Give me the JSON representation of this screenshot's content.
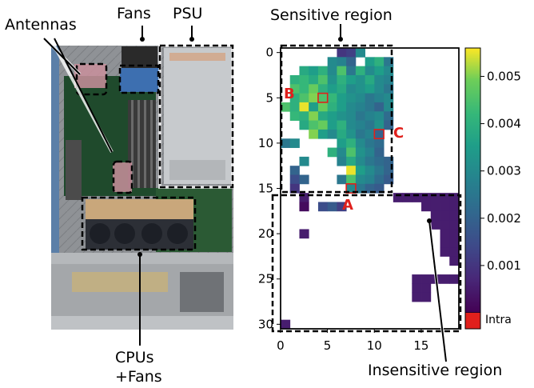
{
  "labels": {
    "antennas": "Antennas",
    "fans": "Fans",
    "psu": "PSU",
    "cpus": "CPUs",
    "cpus_fans": "+Fans",
    "sensitive": "Sensitive region",
    "insensitive": "Insensitive region",
    "point_a": "A",
    "point_b": "B",
    "point_c": "C"
  },
  "chart_data": {
    "type": "heatmap",
    "xlim": [
      0,
      19
    ],
    "ylim": [
      31,
      0
    ],
    "xticks": [
      "0",
      "5",
      "10",
      "15"
    ],
    "yticks": [
      "0",
      "5",
      "10",
      "15",
      "20",
      "25",
      "30"
    ],
    "colorbar": {
      "min": 0.0,
      "max": 0.0056,
      "ticks": [
        "0.001",
        "0.002",
        "0.003",
        "0.004",
        "0.005"
      ],
      "tick_values": [
        0.001,
        0.002,
        0.003,
        0.004,
        0.005
      ],
      "extra_label": "Intra",
      "extra_color": "#e0201c"
    },
    "colormap": "viridis",
    "cells": [
      [
        6,
        0,
        0.001
      ],
      [
        7,
        0,
        0.0012
      ],
      [
        8,
        0,
        0.003
      ],
      [
        5,
        1,
        0.003
      ],
      [
        6,
        1,
        0.0028
      ],
      [
        7,
        1,
        0.002
      ],
      [
        9,
        1,
        0.0035
      ],
      [
        10,
        1,
        0.004
      ],
      [
        11,
        1,
        0.0025
      ],
      [
        2,
        2,
        0.0038
      ],
      [
        3,
        2,
        0.0035
      ],
      [
        4,
        2,
        0.004
      ],
      [
        5,
        2,
        0.003
      ],
      [
        6,
        2,
        0.0045
      ],
      [
        7,
        2,
        0.0025
      ],
      [
        8,
        2,
        0.004
      ],
      [
        9,
        2,
        0.003
      ],
      [
        10,
        2,
        0.0035
      ],
      [
        11,
        2,
        0.003
      ],
      [
        1,
        3,
        0.004
      ],
      [
        2,
        3,
        0.0042
      ],
      [
        3,
        3,
        0.0038
      ],
      [
        4,
        3,
        0.0045
      ],
      [
        5,
        3,
        0.0032
      ],
      [
        6,
        3,
        0.004
      ],
      [
        7,
        3,
        0.0035
      ],
      [
        8,
        3,
        0.0032
      ],
      [
        9,
        3,
        0.0038
      ],
      [
        10,
        3,
        0.003
      ],
      [
        11,
        3,
        0.0028
      ],
      [
        1,
        4,
        0.0045
      ],
      [
        2,
        4,
        0.0042
      ],
      [
        3,
        4,
        0.0048
      ],
      [
        4,
        4,
        0.004
      ],
      [
        5,
        4,
        0.0035
      ],
      [
        6,
        4,
        0.0038
      ],
      [
        7,
        4,
        0.003
      ],
      [
        8,
        4,
        0.0032
      ],
      [
        9,
        4,
        0.0035
      ],
      [
        10,
        4,
        0.003
      ],
      [
        11,
        4,
        0.0025
      ],
      [
        1,
        5,
        0.004
      ],
      [
        2,
        5,
        0.0045
      ],
      [
        3,
        5,
        0.005
      ],
      [
        4,
        5,
        0.0045
      ],
      [
        5,
        5,
        0.0042
      ],
      [
        6,
        5,
        0.0035
      ],
      [
        7,
        5,
        0.0032
      ],
      [
        8,
        5,
        0.003
      ],
      [
        9,
        5,
        0.0025
      ],
      [
        10,
        5,
        0.0028
      ],
      [
        11,
        5,
        0.003
      ],
      [
        0,
        6,
        0.0045
      ],
      [
        1,
        6,
        0.004
      ],
      [
        2,
        6,
        0.0055
      ],
      [
        3,
        6,
        0.0035
      ],
      [
        4,
        6,
        0.0048
      ],
      [
        5,
        6,
        0.004
      ],
      [
        6,
        6,
        0.0035
      ],
      [
        7,
        6,
        0.003
      ],
      [
        8,
        6,
        0.0028
      ],
      [
        9,
        6,
        0.0025
      ],
      [
        10,
        6,
        0.002
      ],
      [
        11,
        6,
        0.003
      ],
      [
        1,
        7,
        0.0042
      ],
      [
        2,
        7,
        0.004
      ],
      [
        3,
        7,
        0.005
      ],
      [
        4,
        7,
        0.0038
      ],
      [
        5,
        7,
        0.0035
      ],
      [
        6,
        7,
        0.0032
      ],
      [
        7,
        7,
        0.003
      ],
      [
        8,
        7,
        0.0025
      ],
      [
        9,
        7,
        0.0028
      ],
      [
        10,
        7,
        0.003
      ],
      [
        11,
        7,
        0.0022
      ],
      [
        2,
        8,
        0.0038
      ],
      [
        3,
        8,
        0.0045
      ],
      [
        4,
        8,
        0.0048
      ],
      [
        5,
        8,
        0.0035
      ],
      [
        6,
        8,
        0.004
      ],
      [
        7,
        8,
        0.003
      ],
      [
        8,
        8,
        0.0028
      ],
      [
        9,
        8,
        0.0025
      ],
      [
        10,
        8,
        0.0032
      ],
      [
        11,
        8,
        0.002
      ],
      [
        3,
        9,
        0.005
      ],
      [
        4,
        9,
        0.0035
      ],
      [
        5,
        9,
        0.003
      ],
      [
        6,
        9,
        0.0038
      ],
      [
        7,
        9,
        0.0032
      ],
      [
        8,
        9,
        0.0025
      ],
      [
        9,
        9,
        0.0028
      ],
      [
        10,
        9,
        0.002
      ],
      [
        0,
        10,
        0.0025
      ],
      [
        1,
        10,
        0.003
      ],
      [
        6,
        10,
        0.0035
      ],
      [
        7,
        10,
        0.004
      ],
      [
        8,
        10,
        0.003
      ],
      [
        9,
        10,
        0.0025
      ],
      [
        10,
        10,
        0.0022
      ],
      [
        5,
        11,
        0.004
      ],
      [
        6,
        11,
        0.003
      ],
      [
        7,
        11,
        0.0045
      ],
      [
        8,
        11,
        0.0032
      ],
      [
        9,
        11,
        0.0028
      ],
      [
        10,
        11,
        0.002
      ],
      [
        2,
        12,
        0.003
      ],
      [
        6,
        12,
        0.0028
      ],
      [
        7,
        12,
        0.0038
      ],
      [
        8,
        12,
        0.003
      ],
      [
        9,
        12,
        0.0025
      ],
      [
        10,
        12,
        0.0022
      ],
      [
        11,
        12,
        0.002
      ],
      [
        1,
        13,
        0.002
      ],
      [
        7,
        13,
        0.0055
      ],
      [
        8,
        13,
        0.0035
      ],
      [
        9,
        13,
        0.003
      ],
      [
        10,
        13,
        0.0025
      ],
      [
        11,
        13,
        0.002
      ],
      [
        1,
        14,
        0.0015
      ],
      [
        2,
        14,
        0.002
      ],
      [
        6,
        14,
        0.0025
      ],
      [
        7,
        14,
        0.0045
      ],
      [
        8,
        14,
        0.003
      ],
      [
        9,
        14,
        0.0028
      ],
      [
        10,
        14,
        0.0022
      ],
      [
        11,
        14,
        0.0018
      ],
      [
        1,
        15,
        0.001
      ],
      [
        7,
        15,
        0.003
      ],
      [
        8,
        15,
        0.0025
      ],
      [
        9,
        15,
        0.002
      ],
      [
        10,
        15,
        0.0018
      ],
      [
        2,
        16,
        0.0005
      ],
      [
        2,
        17,
        0.0002
      ],
      [
        4,
        17,
        0.0015
      ],
      [
        5,
        17,
        0.0018
      ],
      [
        6,
        17,
        0.0012
      ],
      [
        12,
        16,
        0.0005
      ],
      [
        13,
        16,
        0.0005
      ],
      [
        14,
        16,
        0.0005
      ],
      [
        15,
        16,
        0.0005
      ],
      [
        16,
        16,
        0.0005
      ],
      [
        17,
        16,
        0.0005
      ],
      [
        18,
        16,
        0.0005
      ],
      [
        15,
        17,
        0.0005
      ],
      [
        16,
        17,
        0.0005
      ],
      [
        17,
        17,
        0.0005
      ],
      [
        18,
        17,
        0.0005
      ],
      [
        16,
        18,
        0.0005
      ],
      [
        17,
        18,
        0.0005
      ],
      [
        18,
        18,
        0.0005
      ],
      [
        16,
        19,
        0.0005
      ],
      [
        17,
        19,
        0.0005
      ],
      [
        18,
        19,
        0.0005
      ],
      [
        2,
        20,
        0.0005
      ],
      [
        17,
        20,
        0.0005
      ],
      [
        18,
        20,
        0.0005
      ],
      [
        17,
        21,
        0.0005
      ],
      [
        18,
        21,
        0.0005
      ],
      [
        17,
        22,
        0.0005
      ],
      [
        18,
        22,
        0.0005
      ],
      [
        18,
        23,
        0.0005
      ],
      [
        14,
        25,
        0.0005
      ],
      [
        15,
        25,
        0.0005
      ],
      [
        16,
        25,
        0.0005
      ],
      [
        17,
        25,
        0.0005
      ],
      [
        18,
        25,
        0.0005
      ],
      [
        14,
        26,
        0.0005
      ],
      [
        15,
        26,
        0.0005
      ],
      [
        14,
        27,
        0.0005
      ],
      [
        15,
        27,
        0.0005
      ],
      [
        0,
        30,
        0.0005
      ]
    ],
    "markers": [
      {
        "label": "A",
        "x": 7,
        "y": 15
      },
      {
        "label": "B",
        "x": 4,
        "y": 5
      },
      {
        "label": "C",
        "x": 10,
        "y": 9
      }
    ]
  }
}
